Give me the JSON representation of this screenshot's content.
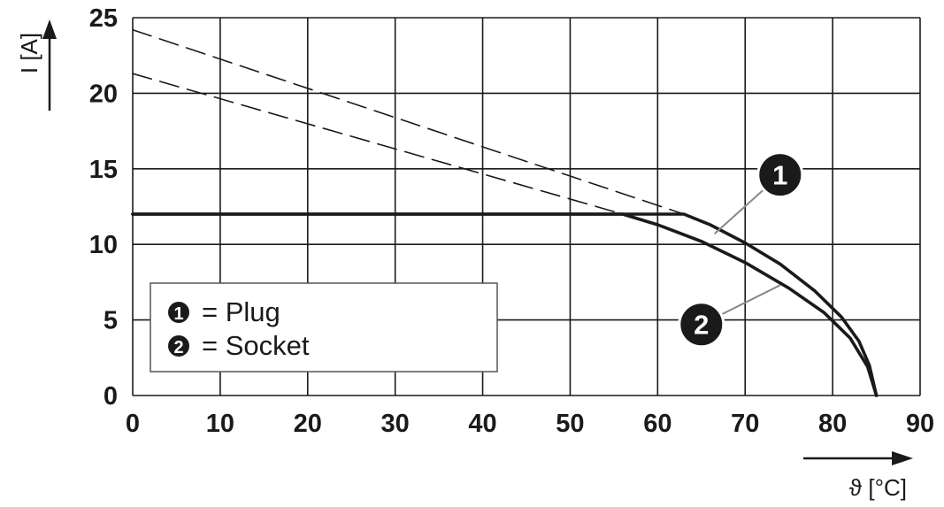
{
  "chart_data": {
    "type": "line",
    "title": "",
    "xlabel": "ϑ [°C]",
    "ylabel": "I [A]",
    "xlim": [
      0,
      90
    ],
    "ylim": [
      0,
      25
    ],
    "xticks": [
      0,
      10,
      20,
      30,
      40,
      50,
      60,
      70,
      80,
      90
    ],
    "yticks": [
      0,
      5,
      10,
      15,
      20,
      25
    ],
    "grid": true,
    "legend": {
      "position": "bottom-left",
      "entries": [
        {
          "marker": "1",
          "label": "= Plug"
        },
        {
          "marker": "2",
          "label": "= Socket"
        }
      ]
    },
    "series": [
      {
        "marker": "1",
        "style": "solid",
        "points": [
          [
            0,
            12
          ],
          [
            63,
            12
          ],
          [
            66,
            11.3
          ],
          [
            70,
            10.1
          ],
          [
            74,
            8.7
          ],
          [
            78,
            6.9
          ],
          [
            81,
            5.2
          ],
          [
            83,
            3.6
          ],
          [
            84.2,
            2.0
          ],
          [
            85,
            0
          ]
        ]
      },
      {
        "marker": "2",
        "style": "solid",
        "points": [
          [
            0,
            12
          ],
          [
            56,
            12
          ],
          [
            60,
            11.3
          ],
          [
            65,
            10.2
          ],
          [
            70,
            8.8
          ],
          [
            75,
            7.1
          ],
          [
            79,
            5.5
          ],
          [
            82,
            3.8
          ],
          [
            84,
            1.9
          ],
          [
            85,
            0
          ]
        ]
      },
      {
        "marker": "1",
        "style": "dashed",
        "points": [
          [
            0,
            24.2
          ],
          [
            63,
            12
          ]
        ]
      },
      {
        "marker": "2",
        "style": "dashed",
        "points": [
          [
            0,
            21.3
          ],
          [
            56,
            12
          ]
        ]
      }
    ],
    "annotations": [
      {
        "marker": "1",
        "point": [
          66.5,
          10.7
        ],
        "badge_at": [
          74,
          14.6
        ]
      },
      {
        "marker": "2",
        "point": [
          74,
          7.3
        ],
        "badge_at": [
          65,
          4.7
        ]
      }
    ],
    "colors": {
      "line": "#1a1a1a",
      "grid": "#1a1a1a",
      "leader": "#888888"
    }
  }
}
